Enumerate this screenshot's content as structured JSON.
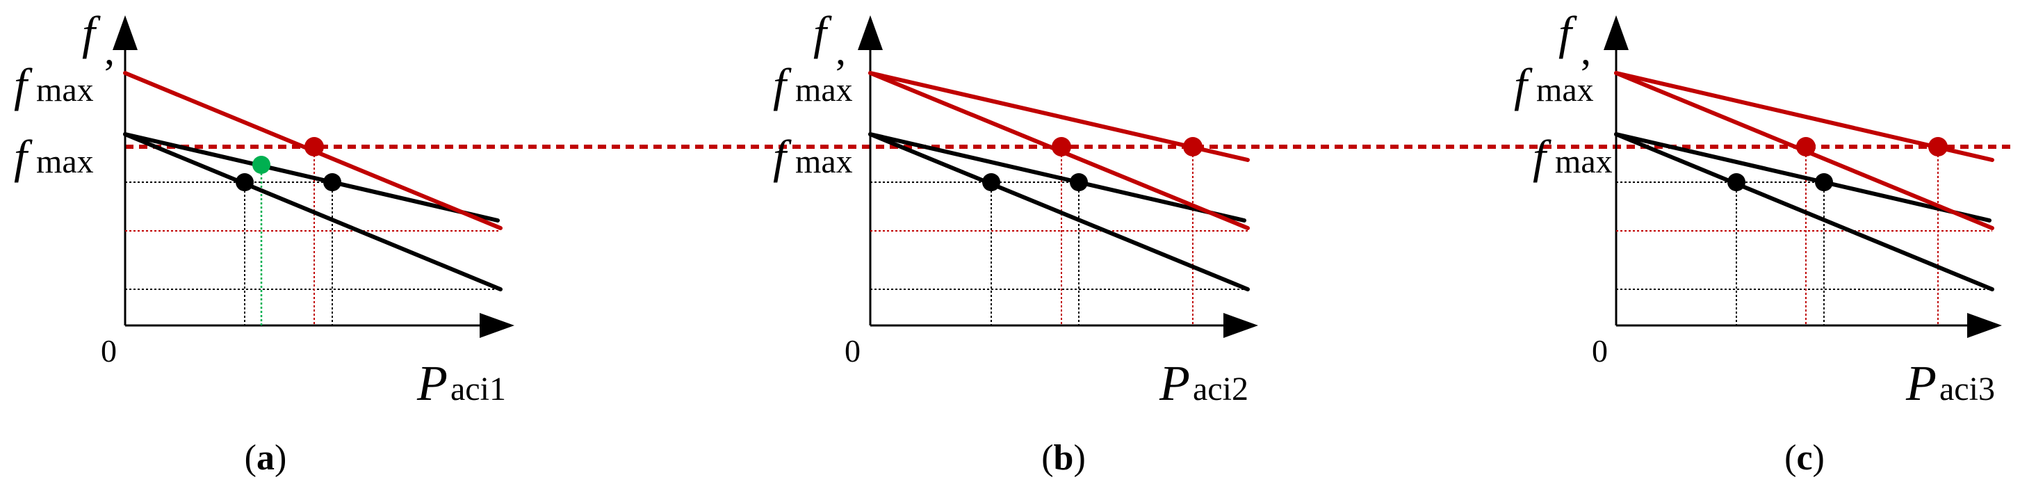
{
  "labels": {
    "f": "f",
    "comma": ",",
    "f_sym": "f",
    "max_sub": "max",
    "origin": "0",
    "P_sym": "P",
    "open_paren": "(",
    "close_paren": ")"
  },
  "panels": [
    {
      "id": "a",
      "x_subscript": "aci1",
      "caption": "a"
    },
    {
      "id": "b",
      "x_subscript": "aci2",
      "caption": "b"
    },
    {
      "id": "c",
      "x_subscript": "aci3",
      "caption": "c"
    }
  ],
  "colors": {
    "axis": "#000000",
    "droop_original": "#000000",
    "droop_shifted": "#c00000",
    "operating_point_original": "#000000",
    "operating_point_shifted": "#c00000",
    "intermediate_point": "#00b050",
    "fmax_line": "#c00000"
  }
}
